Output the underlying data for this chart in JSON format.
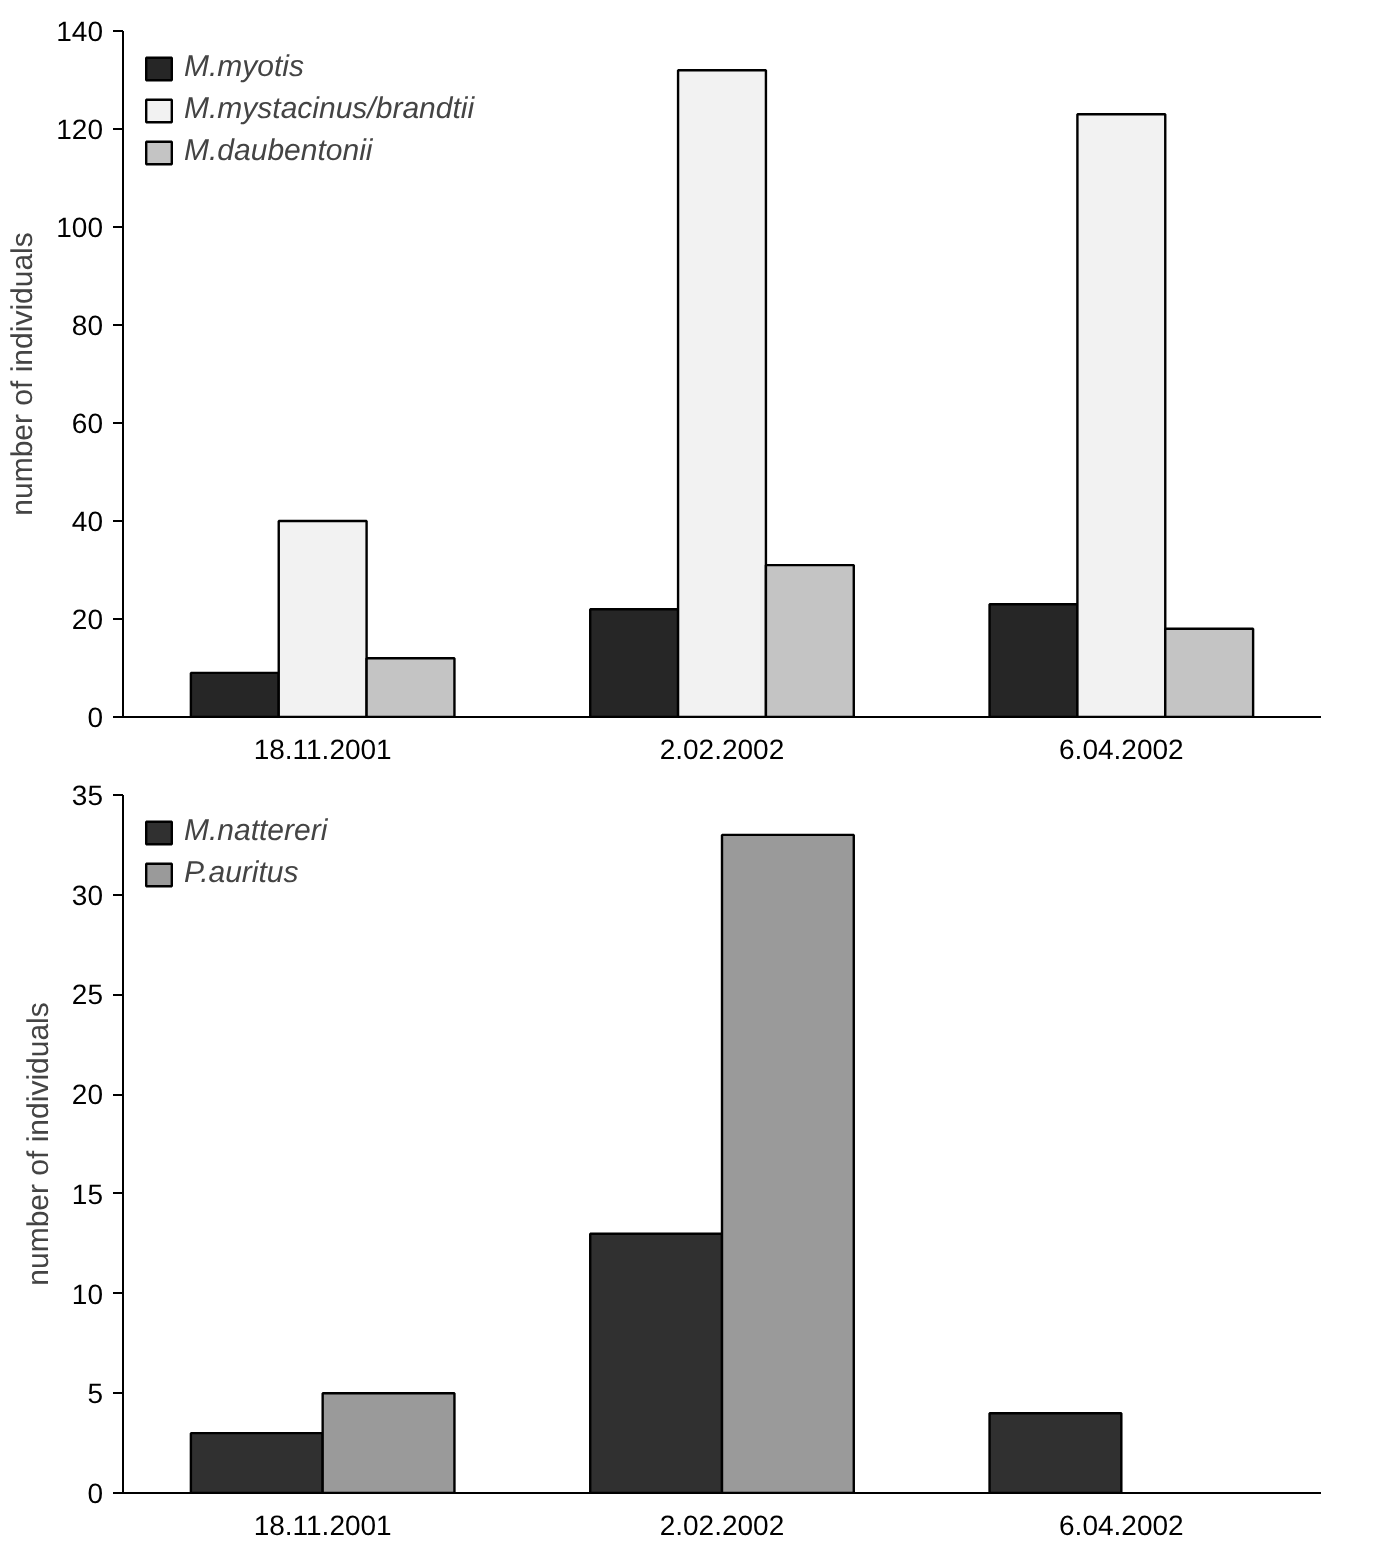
{
  "chart_data": [
    {
      "type": "bar",
      "ylabel": "number of individuals",
      "categories": [
        "18.11.2001",
        "2.02.2002",
        "6.04.2002"
      ],
      "ylim": [
        0,
        140
      ],
      "yticks": [
        0,
        20,
        40,
        60,
        80,
        100,
        120,
        140
      ],
      "grid": false,
      "legend": "top left",
      "series": [
        {
          "name": "M.myotis",
          "color": "#262626",
          "values": [
            9,
            22,
            23
          ]
        },
        {
          "name": "M.mystacinus/brandtii",
          "color": "#f2f2f2",
          "values": [
            40,
            132,
            123
          ]
        },
        {
          "name": "M.daubentonii",
          "color": "#c4c4c4",
          "values": [
            12,
            31,
            18
          ]
        }
      ]
    },
    {
      "type": "bar",
      "ylabel": "number of individuals",
      "categories": [
        "18.11.2001",
        "2.02.2002",
        "6.04.2002"
      ],
      "ylim": [
        0,
        35
      ],
      "yticks": [
        0,
        5,
        10,
        15,
        20,
        25,
        30,
        35
      ],
      "grid": false,
      "legend": "top left",
      "series": [
        {
          "name": "M.nattereri",
          "color": "#303030",
          "values": [
            3,
            13,
            4
          ]
        },
        {
          "name": "P.auritus",
          "color": "#9a9a9a",
          "values": [
            5,
            33,
            null
          ]
        }
      ]
    }
  ]
}
